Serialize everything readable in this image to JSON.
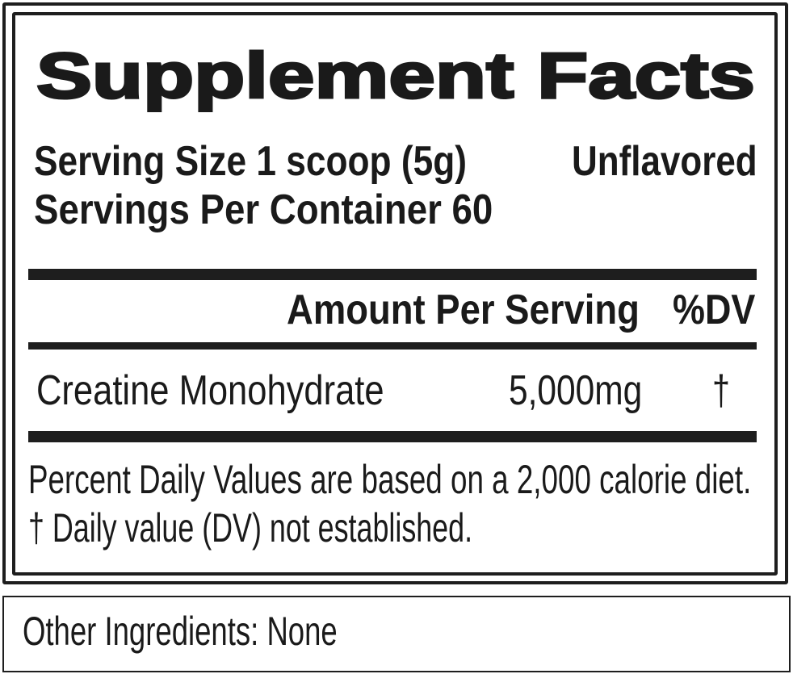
{
  "label": {
    "title": "Supplement Facts",
    "serving_size": "Serving Size 1 scoop (5g)",
    "flavor": "Unflavored",
    "servings_per_container": "Servings Per Container 60",
    "header": {
      "amount_per_serving": "Amount Per Serving",
      "dv": "%DV"
    },
    "ingredients": [
      {
        "name": "Creatine Monohydrate",
        "amount": "5,000mg",
        "dv": "†"
      }
    ],
    "footnotes": [
      "Percent Daily Values are based on a 2,000 calorie diet.",
      "† Daily value (DV) not established."
    ]
  },
  "other_ingredients": "Other Ingredients: None"
}
